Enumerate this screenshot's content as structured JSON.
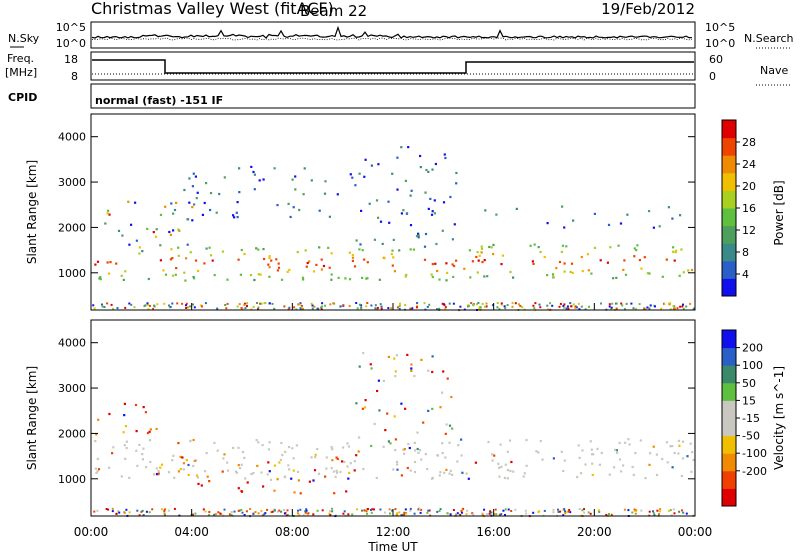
{
  "header": {
    "station": "Christmas Valley West (fitACF)",
    "beam": "Beam 22",
    "date": "19/Feb/2012"
  },
  "scan_params": {
    "nsky": {
      "label": "N.Sky",
      "ticks": [
        "10^5",
        "10^0"
      ],
      "right_label": "N.Search",
      "right_ticks": [
        "10^5",
        "10^0"
      ]
    },
    "freq": {
      "label": "Freq.",
      "unit": "[MHz]",
      "ticks": [
        "18",
        "8"
      ],
      "right_label": "Nave",
      "right_ticks": [
        "60",
        "0"
      ]
    },
    "cpid": {
      "label": "CPID",
      "text": "normal (fast) -151 IF"
    }
  },
  "chart_data": [
    {
      "type": "heatmap",
      "name": "power",
      "ylabel": "Slant Range [km]",
      "ylim": [
        180,
        4500
      ],
      "yticks": [
        1000,
        2000,
        3000,
        4000
      ],
      "xlim": [
        0,
        24
      ],
      "colorbar": {
        "label": "Power [dB]",
        "range": [
          0,
          32
        ],
        "ticks": [
          4,
          8,
          12,
          16,
          20,
          24,
          28
        ],
        "colors": [
          "#1010ee",
          "#2a5fc8",
          "#3a8a8a",
          "#4e9e5e",
          "#5fbf3f",
          "#a8d020",
          "#f0c000",
          "#f08a00",
          "#ee4400",
          "#e00000"
        ]
      },
      "bands": [
        {
          "t": [
            0.1,
            16.0
          ],
          "r": [
            850,
            1600
          ],
          "level": "high"
        },
        {
          "t": [
            15.2,
            24
          ],
          "r": [
            900,
            1650
          ],
          "level": "high"
        },
        {
          "t": [
            0.1,
            4.0
          ],
          "r": [
            1500,
            2700
          ],
          "level": "mixed"
        },
        {
          "t": [
            3.0,
            10.5
          ],
          "r": [
            2200,
            3400
          ],
          "level": "low"
        },
        {
          "t": [
            10.5,
            14.5
          ],
          "r": [
            1600,
            3800
          ],
          "level": "low"
        },
        {
          "t": [
            15.5,
            24
          ],
          "r": [
            2000,
            2500
          ],
          "level": "low"
        }
      ]
    },
    {
      "type": "heatmap",
      "name": "velocity",
      "ylabel": "Slant Range [km]",
      "ylim": [
        180,
        4500
      ],
      "yticks": [
        1000,
        2000,
        3000,
        4000
      ],
      "xlim": [
        0,
        24
      ],
      "xticks": [
        "00:00",
        "04:00",
        "08:00",
        "12:00",
        "16:00",
        "20:00",
        "00:00"
      ],
      "xlabel": "Time UT",
      "colorbar": {
        "label": "Velocity [m s^-1]",
        "range": [
          -250,
          250
        ],
        "ticks": [
          200,
          100,
          50,
          15,
          -15,
          -50,
          -100,
          -200
        ],
        "colors": [
          "#e00000",
          "#f04000",
          "#f08a00",
          "#f0c000",
          "#c8c8c0",
          "#c8c8c0",
          "#5fbf3f",
          "#3a8a6a",
          "#2a5fc8",
          "#1010ee"
        ]
      },
      "bands": [
        {
          "t": [
            0.1,
            24
          ],
          "r": [
            1000,
            1900
          ],
          "level": "zero"
        },
        {
          "t": [
            2.5,
            10.5
          ],
          "r": [
            700,
            1600
          ],
          "level": "negative"
        },
        {
          "t": [
            10.5,
            14.5
          ],
          "r": [
            1600,
            3800
          ],
          "level": "mixed"
        },
        {
          "t": [
            0.1,
            3.0
          ],
          "r": [
            2000,
            2700
          ],
          "level": "negative"
        }
      ]
    }
  ]
}
